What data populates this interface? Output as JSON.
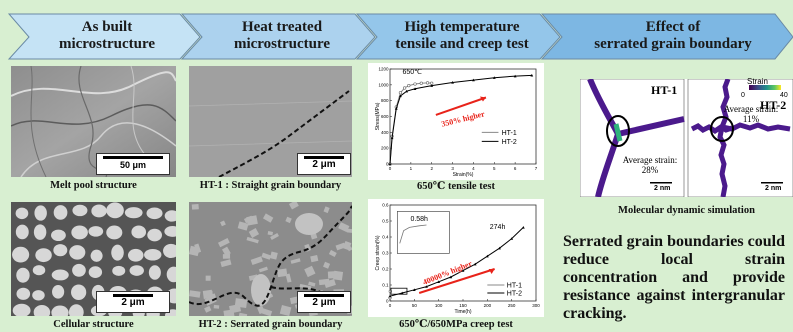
{
  "banners": [
    {
      "line1": "As built",
      "line2": "microstructure",
      "color": "#c5e3f5"
    },
    {
      "line1": "Heat treated",
      "line2": "microstructure",
      "color": "#acd2ee"
    },
    {
      "line1": "High temperature",
      "line2": "tensile and creep test",
      "color": "#94c6ea"
    },
    {
      "line1": "Effect of",
      "line2": "serrated grain boundary",
      "color": "#7db7e3"
    }
  ],
  "panels": {
    "melt_pool": {
      "caption": "Melt pool structure",
      "scale": "50 μm"
    },
    "ht1": {
      "caption": "HT-1 : Straight grain boundary",
      "scale": "2 μm"
    },
    "cellular": {
      "caption": "Cellular structure",
      "scale": "2 μm"
    },
    "ht2": {
      "caption": "HT-2 : Serrated grain boundary",
      "scale": "2 μm"
    }
  },
  "tensile_chart": {
    "caption": "650℃ tensile test",
    "temperature_label": "650℃",
    "annotation": "350% higher",
    "xlabel": "Strain(%)",
    "ylabel": "Stress(MPa)",
    "legend": [
      "HT-1",
      "HT-2"
    ]
  },
  "creep_chart": {
    "caption": "650℃/650MPa creep test",
    "annotation": "40000% higher",
    "label_ht1_life": "0.58h",
    "label_ht2_life": "274h",
    "xlabel": "Time(h)",
    "ylabel": "Creep strain(%)",
    "legend": [
      "HT-1",
      "HT-2"
    ]
  },
  "simulation": {
    "caption": "Molecular dynamic simulation",
    "colorbar_title": "Strain",
    "colorbar_min": "0",
    "colorbar_max": "40",
    "ht1_label": "HT-1",
    "ht2_label": "HT-2",
    "ht1_strain_line1": "Average strain:",
    "ht1_strain_line2": "28%",
    "ht2_strain_line1": "Average strain:",
    "ht2_strain_line2": "11%",
    "scale": "2 nm"
  },
  "summary_text": "Serrated grain boundaries could reduce local strain concentration and provide resistance against intergranular cracking.",
  "chart_data": [
    {
      "type": "line",
      "xlabel": "Strain(%)",
      "ylabel": "Stress(MPa)",
      "xlim": [
        0,
        7
      ],
      "ylim": [
        0,
        1200
      ],
      "xticks": [
        0,
        1,
        2,
        3,
        4,
        5,
        6,
        7
      ],
      "yticks": [
        0,
        200,
        400,
        600,
        800,
        1000,
        1200
      ],
      "legend_position": "bottom-right",
      "series": [
        {
          "name": "HT-1",
          "x": [
            0,
            0.1,
            0.3,
            0.5,
            0.7,
            0.9,
            1.2,
            1.5,
            1.8,
            2.0
          ],
          "y": [
            0,
            350,
            720,
            900,
            960,
            990,
            1010,
            1020,
            1025,
            1020
          ]
        },
        {
          "name": "HT-2",
          "x": [
            0,
            0.1,
            0.3,
            0.5,
            0.8,
            1.2,
            2.0,
            3.0,
            4.0,
            5.0,
            6.0,
            6.8
          ],
          "y": [
            0,
            330,
            700,
            860,
            920,
            950,
            990,
            1030,
            1060,
            1090,
            1110,
            1120
          ]
        }
      ]
    },
    {
      "type": "line",
      "xlabel": "Time(h)",
      "ylabel": "Creep strain(%)",
      "xlim": [
        0,
        300
      ],
      "ylim": [
        0,
        0.6
      ],
      "xticks": [
        0,
        50,
        100,
        150,
        200,
        250,
        300
      ],
      "yticks": [
        0.0,
        0.1,
        0.2,
        0.3,
        0.4,
        0.5,
        0.6
      ],
      "legend_position": "bottom-right",
      "series": [
        {
          "name": "HT-1",
          "x": [
            0,
            0.58
          ],
          "y": [
            0.02,
            0.06
          ]
        },
        {
          "name": "HT-2",
          "x": [
            0,
            25,
            50,
            75,
            100,
            125,
            150,
            175,
            200,
            225,
            250,
            274
          ],
          "y": [
            0.03,
            0.05,
            0.07,
            0.09,
            0.12,
            0.15,
            0.19,
            0.23,
            0.28,
            0.33,
            0.39,
            0.46
          ]
        }
      ]
    }
  ]
}
